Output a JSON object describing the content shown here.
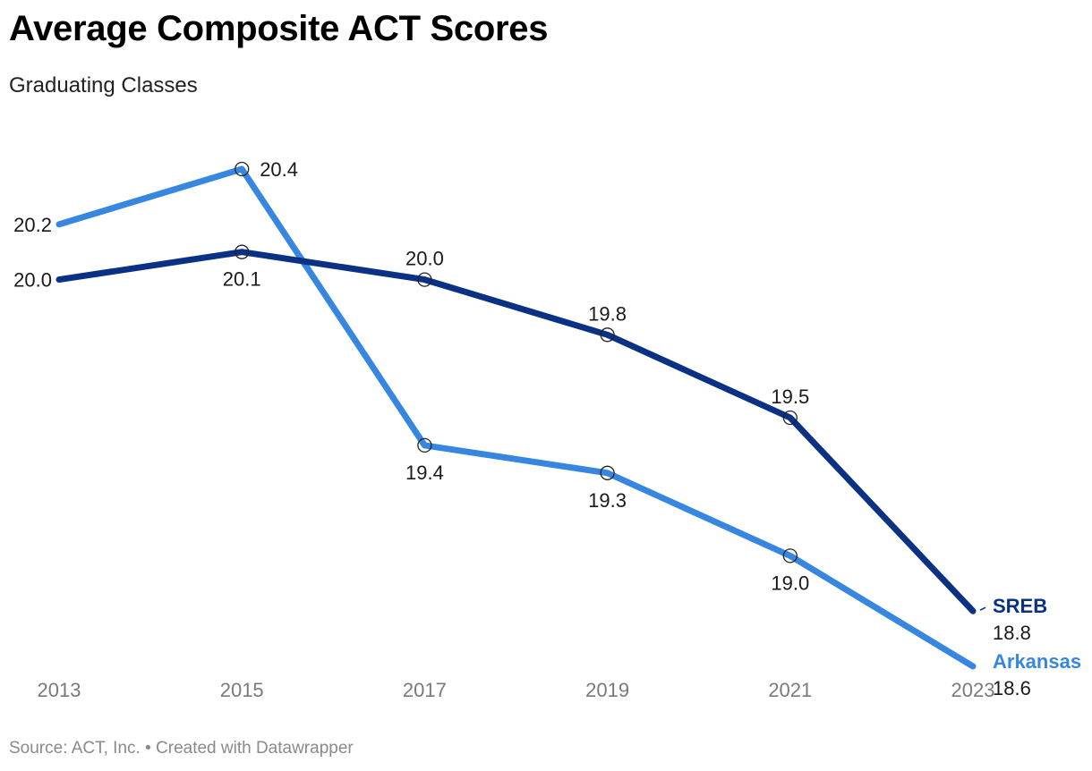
{
  "title": "Average Composite ACT Scores",
  "subtitle": "Graduating Classes",
  "footer": {
    "source": "Source: ACT, Inc.",
    "separator": "•",
    "credit": "Created with Datawrapper"
  },
  "chart_data": {
    "type": "line",
    "title": "Average Composite ACT Scores",
    "subtitle": "Graduating Classes",
    "x": [
      "2013",
      "2015",
      "2017",
      "2019",
      "2021",
      "2023"
    ],
    "series": [
      {
        "name": "SREB",
        "color": "#0a3184",
        "values": [
          20.0,
          20.1,
          20.0,
          19.8,
          19.5,
          18.8
        ],
        "labels": [
          "20.0",
          "20.1",
          "20.0",
          "19.8",
          "19.5",
          "18.8"
        ]
      },
      {
        "name": "Arkansas",
        "color": "#3787e0",
        "values": [
          20.2,
          20.4,
          19.4,
          19.3,
          19.0,
          18.6
        ],
        "labels": [
          "20.2",
          "20.4",
          "19.4",
          "19.3",
          "19.0",
          "18.6"
        ]
      }
    ],
    "ylim": [
      18.6,
      20.4
    ],
    "xlabel": "",
    "ylabel": "",
    "grid": false,
    "legend": "direct labels at line ends"
  }
}
